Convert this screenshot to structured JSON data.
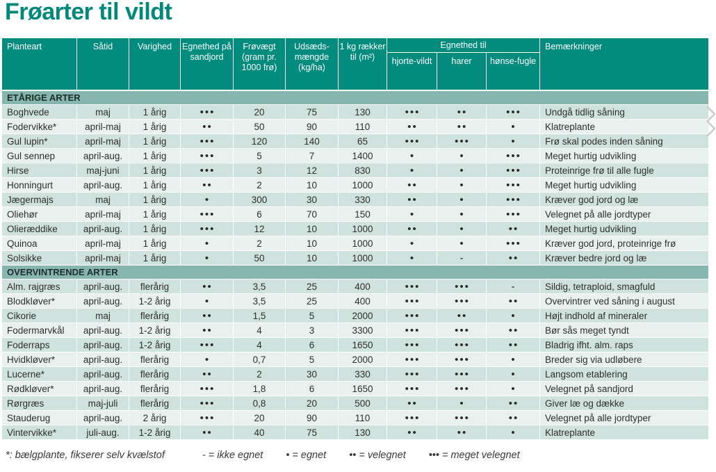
{
  "page_title": "Frøarter til vildt",
  "colors": {
    "brand_teal": "#018c7d",
    "title_teal": "#00897b",
    "section_row": "#86b6ae",
    "row_dark": "#cfe2de",
    "row_light": "#e9f1ee",
    "text_dark": "#2f2e2b"
  },
  "table": {
    "header": {
      "planteart": "Planteart",
      "saatid": "Såtid",
      "varighed": "Varighed",
      "egnethed_sandjord": "Egnethed på sandjord",
      "froevaegt": "Frøvægt (gram pr. 1000 frø)",
      "udsaeds": "Udsæds-mængde (kg/ha)",
      "raekker": "1 kg rækker til (m²)",
      "egnethed_til": "Egnethed til",
      "hjortevildt": "hjorte-vildt",
      "harer": "harer",
      "hoensefugle": "hønse-fugle",
      "bemaerkninger": "Bemærkninger"
    },
    "sections": [
      {
        "label": "ETÅRIGE ARTER",
        "rows": [
          [
            "Boghvede",
            "maj",
            "1 årig",
            "•••",
            "20",
            "75",
            "130",
            "•••",
            "••",
            "•••",
            "Undgå tidlig såning"
          ],
          [
            "Fodervikke*",
            "april-maj",
            "1 årig",
            "••",
            "50",
            "90",
            "110",
            "••",
            "••",
            "•",
            "Klatreplante"
          ],
          [
            "Gul lupin*",
            "april-maj",
            "1 årig",
            "•••",
            "120",
            "140",
            "65",
            "•••",
            "•••",
            "•",
            "Frø skal podes inden såning"
          ],
          [
            "Gul sennep",
            "april-aug.",
            "1 årig",
            "•••",
            "5",
            "7",
            "1400",
            "•",
            "•",
            "•••",
            "Meget hurtig udvikling"
          ],
          [
            "Hirse",
            "maj-juni",
            "1 årig",
            "•••",
            "3",
            "12",
            "830",
            "•",
            "•",
            "•••",
            "Proteinrige frø til alle fugle"
          ],
          [
            "Honningurt",
            "april-aug.",
            "1 årig",
            "••",
            "2",
            "10",
            "1000",
            "••",
            "•",
            "•••",
            "Meget hurtig udvikling"
          ],
          [
            "Jægermajs",
            "maj",
            "1 årig",
            "•",
            "300",
            "30",
            "330",
            "••",
            "•",
            "•••",
            "Kræver god jord og læ"
          ],
          [
            "Oliehør",
            "april-maj",
            "1 årig",
            "•••",
            "6",
            "70",
            "150",
            "•",
            "•",
            "•••",
            "Velegnet på alle jordtyper"
          ],
          [
            "Olieræddike",
            "april-aug.",
            "1 årig",
            "•••",
            "12",
            "10",
            "1000",
            "••",
            "•",
            "••",
            "Meget hurtig udvikling"
          ],
          [
            "Quinoa",
            "april-maj",
            "1 årig",
            "•",
            "2",
            "10",
            "1000",
            "•",
            "•",
            "•••",
            "Kræver god jord, proteinrige frø"
          ],
          [
            "Solsikke",
            "april-maj",
            "1 årig",
            "•",
            "50",
            "10",
            "1000",
            "•",
            "-",
            "••",
            "Kræver bedre jord og læ"
          ]
        ]
      },
      {
        "label": "OVERVINTRENDE ARTER",
        "rows": [
          [
            "Alm. rajgræs",
            "april-aug.",
            "flerårig",
            "••",
            "3,5",
            "25",
            "400",
            "•••",
            "•••",
            "-",
            "Sildig, tetraploid, smagfuld"
          ],
          [
            "Blodkløver*",
            "april-aug.",
            "1-2 årig",
            "•",
            "3,5",
            "25",
            "400",
            "•••",
            "•••",
            "••",
            "Overvintrer ved såning i august"
          ],
          [
            "Cikorie",
            "maj",
            "flerårig",
            "••",
            "1,5",
            "5",
            "2000",
            "•••",
            "••",
            "•",
            "Højt indhold af mineraler"
          ],
          [
            "Fodermarvkål",
            "april-aug.",
            "1-2 årig",
            "••",
            "4",
            "3",
            "3300",
            "•••",
            "•••",
            "••",
            "Bør sås meget tyndt"
          ],
          [
            "Foderraps",
            "april-aug.",
            "1-2 årig",
            "•••",
            "4",
            "6",
            "1650",
            "•••",
            "•••",
            "••",
            "Bladrig ifht. alm. raps"
          ],
          [
            "Hvidkløver*",
            "april-aug.",
            "flerårig",
            "•",
            "0,7",
            "5",
            "2000",
            "•••",
            "•••",
            "•",
            "Breder sig via udløbere"
          ],
          [
            "Lucerne*",
            "april-aug.",
            "flerårig",
            "••",
            "2",
            "30",
            "330",
            "•••",
            "•••",
            "•",
            "Langsom etablering"
          ],
          [
            "Rødkløver*",
            "april-aug.",
            "flerårig",
            "•••",
            "1,8",
            "6",
            "1650",
            "•••",
            "•••",
            "•",
            "Velegnet på sandjord"
          ],
          [
            "Rørgræs",
            "maj-juli",
            "flerårig",
            "•••",
            "0,8",
            "20",
            "500",
            "••",
            "•",
            "••",
            "Giver læ og dække"
          ],
          [
            "Stauderug",
            "april-aug.",
            "2 årig",
            "•••",
            "20",
            "90",
            "110",
            "•••",
            "•••",
            "••",
            "Velegnet på alle jordtyper"
          ],
          [
            "Vintervikke*",
            "juli-aug.",
            "1-2 årig",
            "••",
            "40",
            "75",
            "130",
            "••",
            "••",
            "•",
            "Klatreplante"
          ]
        ]
      }
    ]
  },
  "legend": {
    "note": "*: bælgplante, fikserer selv kvælstof",
    "items": [
      "- = ikke egnet",
      "• = egnet",
      "•• = velegnet",
      "••• = meget velegnet"
    ]
  },
  "icons": {
    "chevrons_right": "double chevron pointing right at table edge"
  }
}
